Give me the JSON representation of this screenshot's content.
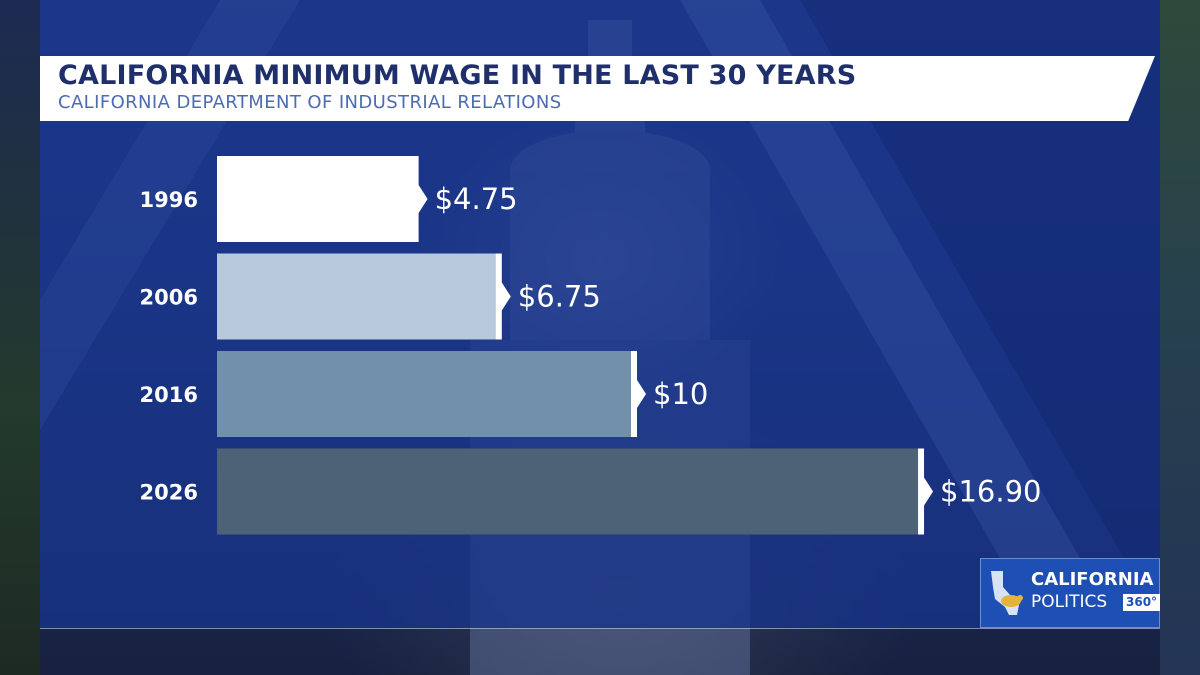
{
  "header": {
    "title": "CALIFORNIA MINIMUM WAGE IN THE LAST 30 YEARS",
    "subtitle": "CALIFORNIA DEPARTMENT OF INDUSTRIAL RELATIONS"
  },
  "chart_data": {
    "type": "bar",
    "orientation": "horizontal",
    "title": "CALIFORNIA MINIMUM WAGE IN THE LAST 30 YEARS",
    "subtitle": "CALIFORNIA DEPARTMENT OF INDUSTRIAL RELATIONS",
    "categories": [
      "1996",
      "2006",
      "2016",
      "2026"
    ],
    "values": [
      4.75,
      6.75,
      10,
      16.9
    ],
    "value_labels": [
      "$4.75",
      "$6.75",
      "$10",
      "$16.90"
    ],
    "bar_colors": [
      "#ffffff",
      "#b8c8dd",
      "#7090ab",
      "#4d6277"
    ],
    "grid": false,
    "legend": "none"
  },
  "logo": {
    "line1": "CALIFORNIA",
    "line2": "POLITICS",
    "badge": "360°",
    "icon": "california-bear-icon"
  },
  "colors": {
    "panel": "#18348a",
    "title_text": "#1f2f6b",
    "subtitle_text": "#4d6bb0",
    "logo_bg": "#1e4fb5"
  }
}
